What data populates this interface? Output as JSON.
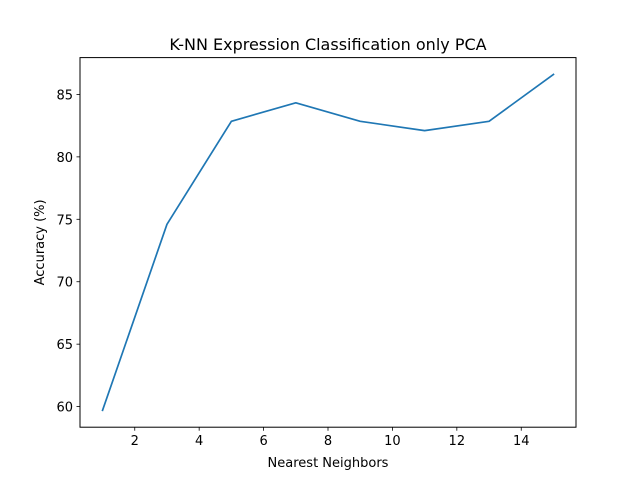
{
  "chart_data": {
    "type": "line",
    "title": "K-NN Expression Classification only PCA",
    "xlabel": "Nearest Neighbors",
    "ylabel": "Accuracy (%)",
    "xlim": [
      0.3,
      15.7
    ],
    "ylim": [
      58.35,
      87.95
    ],
    "xticks": [
      2,
      4,
      6,
      8,
      10,
      12,
      14
    ],
    "yticks": [
      60,
      65,
      70,
      75,
      80,
      85
    ],
    "grid": false,
    "series": [
      {
        "color": "#1f77b4",
        "x": [
          1,
          3,
          5,
          7,
          9,
          11,
          13,
          15
        ],
        "y": [
          59.7,
          74.6,
          82.85,
          84.33,
          82.85,
          82.1,
          82.85,
          86.6
        ]
      }
    ]
  }
}
